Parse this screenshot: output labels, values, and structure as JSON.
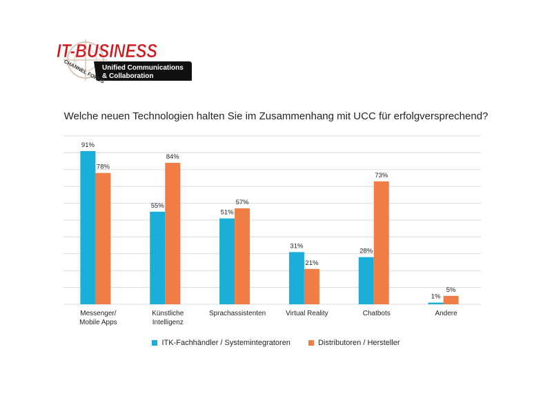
{
  "logo": {
    "brand": "IT-BUSINESS",
    "ring_text": "CHANNEL FOKUS",
    "tagline_line1": "Unified Communications",
    "tagline_line2": "& Collaboration"
  },
  "colors": {
    "series1": "#1aaed9",
    "series2": "#ef7d45",
    "brand_red": "#d0171c",
    "grid": "#d9d9d9"
  },
  "chart_data": {
    "type": "bar",
    "title": "Welche neuen Technologien halten Sie im Zusammenhang mit UCC für erfolgversprechend?",
    "categories": [
      [
        "Messenger/",
        "Mobile Apps"
      ],
      [
        "Künstliche",
        "Intelligenz"
      ],
      [
        "Sprachassistenten"
      ],
      [
        "Virtual Reality"
      ],
      [
        "Chatbots"
      ],
      [
        "Andere"
      ]
    ],
    "series": [
      {
        "name": "ITK-Fachhändler / Systemintegratoren",
        "values": [
          91,
          55,
          51,
          31,
          28,
          1
        ],
        "labels": [
          "91%",
          "55%",
          "51%",
          "31%",
          "28%",
          "1%"
        ]
      },
      {
        "name": "Distributoren / Hersteller",
        "values": [
          78,
          84,
          57,
          21,
          73,
          5
        ],
        "labels": [
          "78%",
          "84%",
          "57%",
          "21%",
          "73%",
          "5%"
        ]
      }
    ],
    "ylim": [
      0,
      100
    ],
    "grid": true,
    "legend": "bottom"
  }
}
